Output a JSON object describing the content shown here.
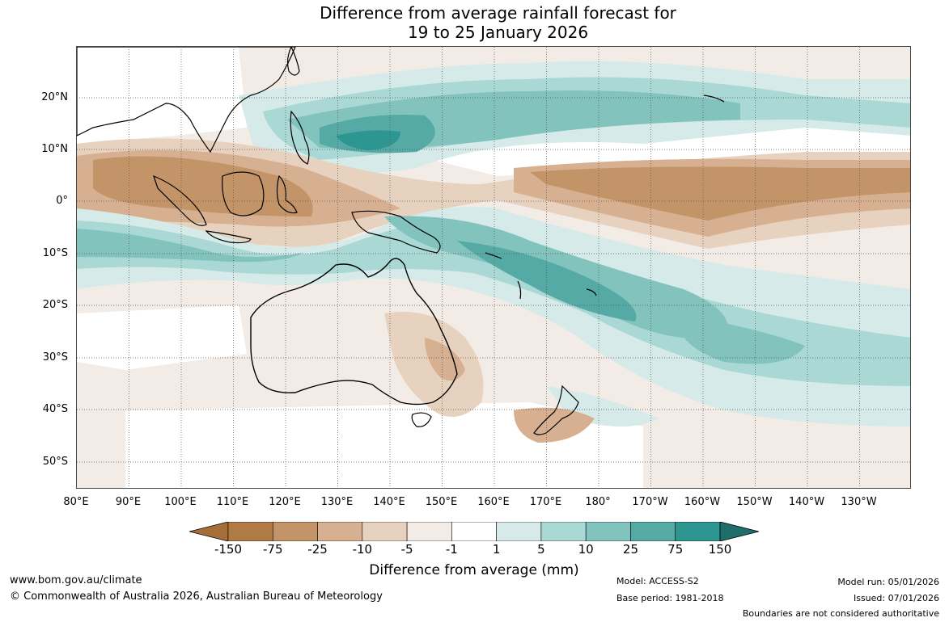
{
  "title": {
    "line1": "Difference from average rainfall forecast for",
    "line2": "19 to 25 January 2026"
  },
  "lat_labels": [
    "20°N",
    "10°N",
    "0°",
    "10°S",
    "20°S",
    "30°S",
    "40°S",
    "50°S"
  ],
  "lon_labels": [
    "80°E",
    "90°E",
    "100°E",
    "110°E",
    "120°E",
    "130°E",
    "140°E",
    "150°E",
    "160°E",
    "170°E",
    "180°",
    "170°W",
    "160°W",
    "150°W",
    "140°W",
    "130°W"
  ],
  "colorbar": {
    "ticks": [
      "-150",
      "-75",
      "-25",
      "-10",
      "-5",
      "-1",
      "1",
      "5",
      "10",
      "25",
      "75",
      "150"
    ],
    "colors": [
      "#a66f3a",
      "#b07a45",
      "#c39468",
      "#d6b090",
      "#e7d2bf",
      "#f3ece6",
      "#ffffff",
      "#d6ebe9",
      "#aad8d4",
      "#82c3be",
      "#55aaa6",
      "#2e9690",
      "#1f6e6a"
    ],
    "title": "Difference from average (mm)"
  },
  "footer": {
    "website": "www.bom.gov.au/climate",
    "copyright": "© Commonwealth of Australia 2026, Australian Bureau of Meteorology",
    "model": "Model: ACCESS-S2",
    "base_period": "Base period: 1981-2018",
    "model_run": "Model run: 05/01/2026",
    "issued": "Issued: 07/01/2026",
    "disclaimer": "Boundaries are not considered authoritative"
  }
}
